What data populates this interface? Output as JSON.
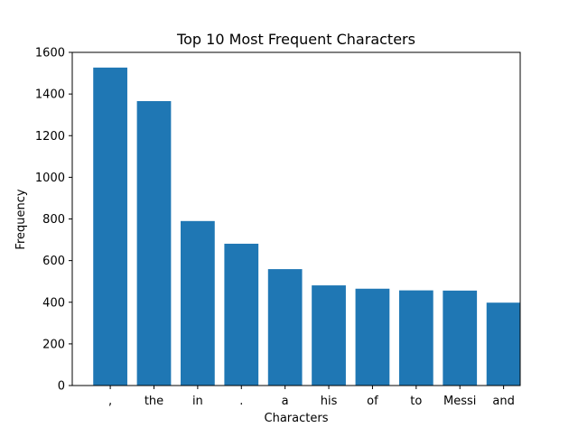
{
  "chart_data": {
    "type": "bar",
    "title": "Top 10 Most Frequent Characters",
    "xlabel": "Characters",
    "ylabel": "Frequency",
    "categories": [
      ",",
      "the",
      "in",
      ".",
      "a",
      "his",
      "of",
      "to",
      "Messi",
      "and"
    ],
    "values": [
      1527,
      1366,
      790,
      681,
      559,
      481,
      465,
      457,
      456,
      398
    ],
    "ylim": [
      0,
      1600
    ],
    "yticks": [
      0,
      200,
      400,
      600,
      800,
      1000,
      1200,
      1400,
      1600
    ],
    "bar_color": "#1f77b4",
    "grid": false,
    "legend": "none"
  }
}
